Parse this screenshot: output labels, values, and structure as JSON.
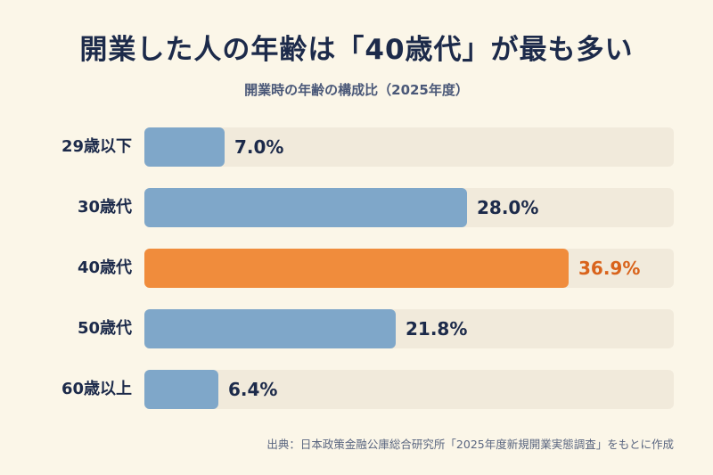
{
  "chart_data": {
    "type": "bar",
    "orientation": "horizontal",
    "title": "開業した人の年齢は「40歳代」が最も多い",
    "subtitle": "開業時の年齢の構成比（2025年度）",
    "categories": [
      "29歳以下",
      "30歳代",
      "40歳代",
      "50歳代",
      "60歳以上"
    ],
    "values": [
      7.0,
      28.0,
      36.9,
      21.8,
      6.4
    ],
    "value_labels": [
      "7.0%",
      "28.0%",
      "36.9%",
      "21.8%",
      "6.4%"
    ],
    "unit": "%",
    "xlim": [
      0,
      46
    ],
    "highlight_index": 2,
    "grid": false,
    "legend": "none",
    "source": "出典：日本政策金融公庫総合研究所「2025年度新規開業実態調査」をもとに作成"
  },
  "colors": {
    "background": "#fbf6e8",
    "track": "#f1eadb",
    "bar": "#7fa7c9",
    "highlight_bar": "#f08c3c",
    "highlight_text": "#d9631b",
    "text": "#1c2a4a"
  }
}
